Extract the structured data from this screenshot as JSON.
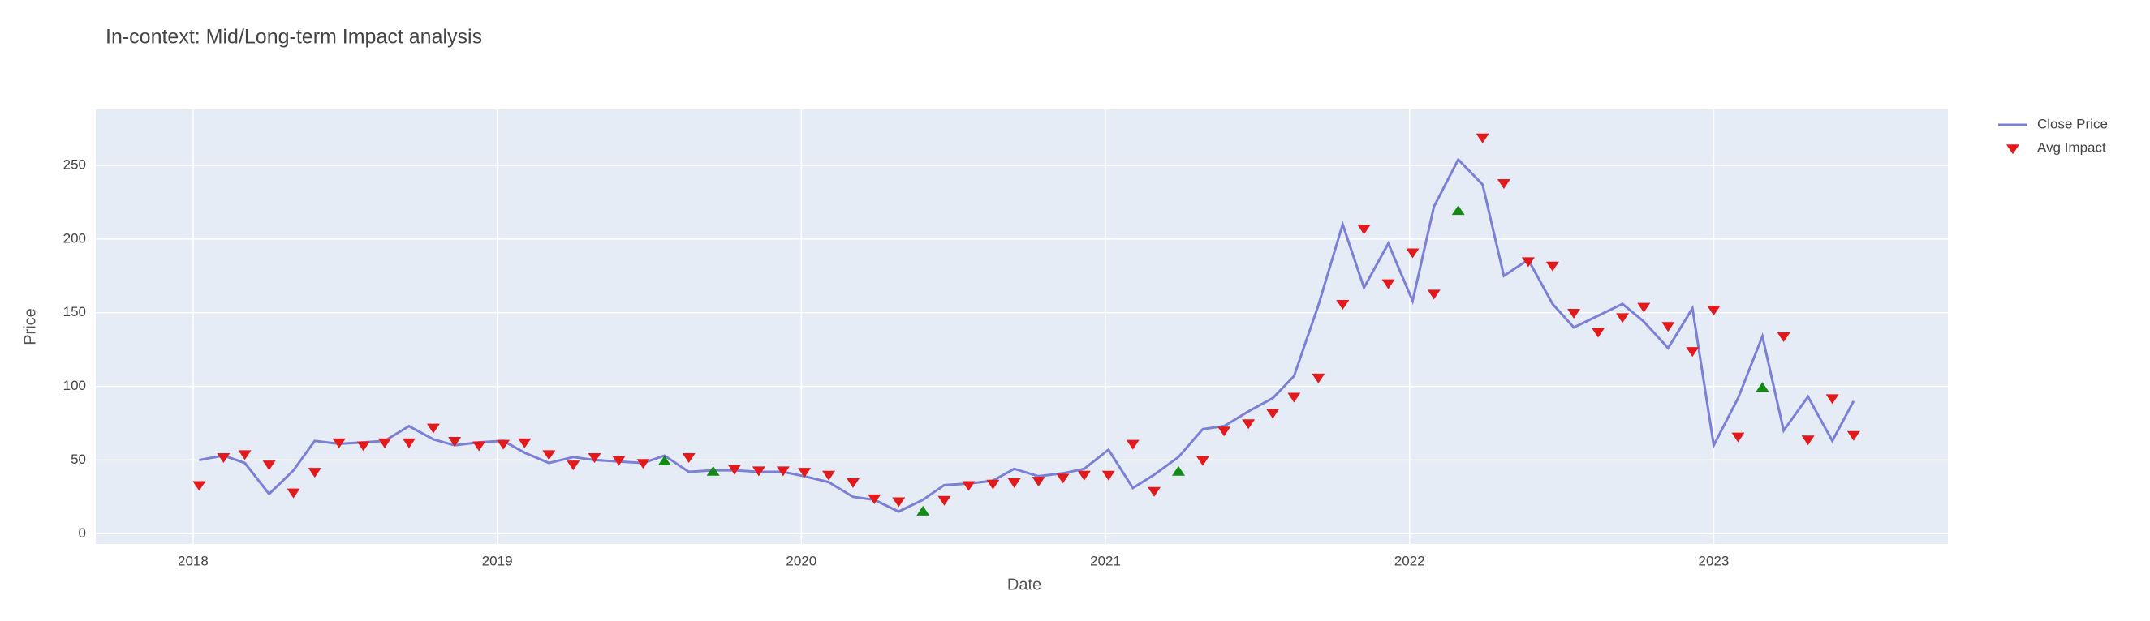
{
  "chart_data": {
    "type": "line",
    "title": "In-context: Mid/Long-term Impact analysis",
    "x_label": "Date",
    "y_label": "Price",
    "x": [
      2018.02,
      2018.1,
      2018.17,
      2018.25,
      2018.33,
      2018.4,
      2018.48,
      2018.56,
      2018.63,
      2018.71,
      2018.79,
      2018.86,
      2018.94,
      2019.02,
      2019.09,
      2019.17,
      2019.25,
      2019.32,
      2019.4,
      2019.48,
      2019.55,
      2019.63,
      2019.71,
      2019.78,
      2019.86,
      2019.94,
      2020.01,
      2020.09,
      2020.17,
      2020.24,
      2020.32,
      2020.4,
      2020.47,
      2020.55,
      2020.63,
      2020.7,
      2020.78,
      2020.86,
      2020.93,
      2021.01,
      2021.09,
      2021.16,
      2021.24,
      2021.32,
      2021.39,
      2021.47,
      2021.55,
      2021.62,
      2021.7,
      2021.78,
      2021.85,
      2021.93,
      2022.01,
      2022.08,
      2022.16,
      2022.24,
      2022.31,
      2022.39,
      2022.47,
      2022.54,
      2022.62,
      2022.7,
      2022.77,
      2022.85,
      2022.93,
      2023.0,
      2023.08,
      2023.16,
      2023.23,
      2023.31,
      2023.39,
      2023.46
    ],
    "series": [
      {
        "name": "Close Price",
        "mode": "lines",
        "color": "#7b7fd6",
        "values": [
          50,
          53,
          48,
          27,
          43,
          63,
          61,
          62,
          63,
          73,
          64,
          60,
          62,
          63,
          55,
          48,
          52,
          50,
          49,
          48,
          53,
          42,
          43,
          43,
          42,
          42,
          39,
          35,
          25,
          23,
          15,
          23,
          33,
          34,
          36,
          44,
          39,
          41,
          44,
          57,
          31,
          40,
          52,
          71,
          73,
          83,
          92,
          107,
          155,
          210,
          167,
          197,
          158,
          222,
          254,
          237,
          175,
          186,
          156,
          140,
          148,
          156,
          144,
          126,
          153,
          60,
          92,
          134,
          70,
          93,
          63,
          90
        ]
      },
      {
        "name": "Avg Impact",
        "mode": "markers",
        "color": "#e3191c",
        "values": [
          33,
          52,
          54,
          47,
          28,
          42,
          62,
          60,
          62,
          62,
          72,
          63,
          60,
          61,
          62,
          54,
          47,
          52,
          50,
          48,
          49,
          52,
          42,
          44,
          43,
          43,
          42,
          40,
          35,
          24,
          22,
          15,
          23,
          33,
          34,
          35,
          36,
          38,
          40,
          40,
          61,
          29,
          42,
          50,
          70,
          75,
          82,
          93,
          106,
          156,
          207,
          170,
          191,
          163,
          219,
          269,
          238,
          185,
          182,
          150,
          137,
          147,
          154,
          141,
          124,
          152,
          66,
          99,
          134,
          64,
          92,
          67
        ],
        "marker_colors": [
          "#e3191c",
          "#e3191c",
          "#e3191c",
          "#e3191c",
          "#e3191c",
          "#e3191c",
          "#e3191c",
          "#e3191c",
          "#e3191c",
          "#e3191c",
          "#e3191c",
          "#e3191c",
          "#e3191c",
          "#e3191c",
          "#e3191c",
          "#e3191c",
          "#e3191c",
          "#e3191c",
          "#e3191c",
          "#e3191c",
          "#138a13",
          "#e3191c",
          "#138a13",
          "#e3191c",
          "#e3191c",
          "#e3191c",
          "#e3191c",
          "#e3191c",
          "#e3191c",
          "#e3191c",
          "#e3191c",
          "#138a13",
          "#e3191c",
          "#e3191c",
          "#e3191c",
          "#e3191c",
          "#e3191c",
          "#e3191c",
          "#e3191c",
          "#e3191c",
          "#e3191c",
          "#e3191c",
          "#138a13",
          "#e3191c",
          "#e3191c",
          "#e3191c",
          "#e3191c",
          "#e3191c",
          "#e3191c",
          "#e3191c",
          "#e3191c",
          "#e3191c",
          "#e3191c",
          "#e3191c",
          "#138a13",
          "#e3191c",
          "#e3191c",
          "#e3191c",
          "#e3191c",
          "#e3191c",
          "#e3191c",
          "#e3191c",
          "#e3191c",
          "#e3191c",
          "#e3191c",
          "#e3191c",
          "#e3191c",
          "#138a13",
          "#e3191c",
          "#e3191c",
          "#e3191c",
          "#e3191c"
        ],
        "symbols": [
          "triangle-down",
          "triangle-down",
          "triangle-down",
          "triangle-down",
          "triangle-down",
          "triangle-down",
          "triangle-down",
          "triangle-down",
          "triangle-down",
          "triangle-down",
          "triangle-down",
          "triangle-down",
          "triangle-down",
          "triangle-down",
          "triangle-down",
          "triangle-down",
          "triangle-down",
          "triangle-down",
          "triangle-down",
          "triangle-down",
          "triangle-up",
          "triangle-down",
          "triangle-up",
          "triangle-down",
          "triangle-down",
          "triangle-down",
          "triangle-down",
          "triangle-down",
          "triangle-down",
          "triangle-down",
          "triangle-down",
          "triangle-up",
          "triangle-down",
          "triangle-down",
          "triangle-down",
          "triangle-down",
          "triangle-down",
          "triangle-down",
          "triangle-down",
          "triangle-down",
          "triangle-down",
          "triangle-down",
          "triangle-up",
          "triangle-down",
          "triangle-down",
          "triangle-down",
          "triangle-down",
          "triangle-down",
          "triangle-down",
          "triangle-down",
          "triangle-down",
          "triangle-down",
          "triangle-down",
          "triangle-down",
          "triangle-up",
          "triangle-down",
          "triangle-down",
          "triangle-down",
          "triangle-down",
          "triangle-down",
          "triangle-down",
          "triangle-down",
          "triangle-down",
          "triangle-down",
          "triangle-down",
          "triangle-down",
          "triangle-down",
          "triangle-up",
          "triangle-down",
          "triangle-down",
          "triangle-down",
          "triangle-down"
        ]
      }
    ],
    "xlim": [
      2017.68,
      2023.77
    ],
    "xticks": [
      2018,
      2019,
      2020,
      2021,
      2022,
      2023
    ],
    "ylim": [
      -7,
      288
    ],
    "yticks": [
      0,
      50,
      100,
      150,
      200,
      250
    ],
    "grid": true,
    "plot_background": "#e5ecf6",
    "legend": "outside-right"
  }
}
